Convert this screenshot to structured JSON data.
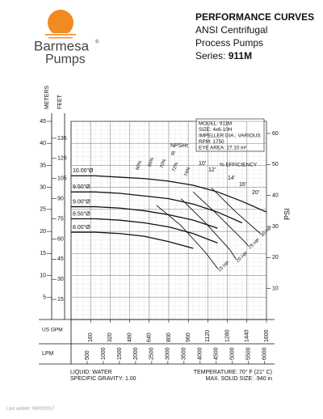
{
  "header": {
    "brand": "Barmesa",
    "brand_sub": "Pumps",
    "title": "PERFORMANCE CURVES",
    "line1": "ANSI Centrifugal",
    "line2": "Process Pumps",
    "series_label": "Series:",
    "series": "911M"
  },
  "chart_data": {
    "type": "line",
    "x_label": "US GPM",
    "x2_label": "LPM",
    "y_label": "FEET",
    "y2_label": "METERS",
    "y3_label": "PSI",
    "x": [
      0,
      200,
      400,
      600,
      800,
      1000,
      1200,
      1400,
      1600
    ],
    "xlim": [
      0,
      1600
    ],
    "xticks": [
      160,
      320,
      480,
      640,
      800,
      960,
      1120,
      1280,
      1440,
      1600
    ],
    "x2lim": [
      0,
      6057
    ],
    "x2ticks": [
      500,
      1000,
      1500,
      2000,
      2500,
      3000,
      3500,
      4000,
      4500,
      5000,
      5500,
      6000
    ],
    "ylim": [
      0,
      147.6
    ],
    "yticks": [
      15,
      30,
      45,
      60,
      75,
      90,
      105,
      120,
      135
    ],
    "y2lim": [
      0,
      45
    ],
    "y2ticks": [
      5,
      10,
      15,
      20,
      25,
      30,
      35,
      40,
      45
    ],
    "y3lim": [
      0,
      63.9
    ],
    "y3ticks": [
      10,
      20,
      30,
      40,
      50,
      60
    ],
    "grid": true,
    "series": [
      {
        "name": "10.00\"Ø",
        "color": "#111111",
        "values": [
          107,
          107,
          106,
          105,
          103,
          100,
          95,
          88,
          80
        ]
      },
      {
        "name": "9.50\"Ø",
        "color": "#111111",
        "values": [
          95,
          95,
          94,
          92,
          90,
          86,
          80,
          72,
          null
        ]
      },
      {
        "name": "9.00\"Ø",
        "color": "#111111",
        "values": [
          84,
          84,
          83,
          81,
          78,
          74,
          68,
          null,
          null
        ]
      },
      {
        "name": "8.50\"Ø",
        "color": "#111111",
        "values": [
          75,
          75,
          74,
          72,
          69,
          64,
          57,
          null,
          null
        ]
      },
      {
        "name": "8.00\"Ø",
        "color": "#111111",
        "values": [
          65,
          65,
          64,
          62,
          58,
          53,
          null,
          null,
          null
        ]
      }
    ],
    "hp_curves": [
      {
        "name": "15 HP",
        "x": [
          700,
          900,
          1100,
          1200
        ],
        "values": [
          85,
          70,
          50,
          38
        ]
      },
      {
        "name": "20 HP",
        "x": [
          900,
          1100,
          1300,
          1350
        ],
        "values": [
          90,
          72,
          52,
          45
        ]
      },
      {
        "name": "25 HP",
        "x": [
          1000,
          1200,
          1400,
          1450
        ],
        "values": [
          95,
          78,
          60,
          55
        ]
      },
      {
        "name": "30 HP",
        "x": [
          1150,
          1350,
          1500,
          1550
        ],
        "values": [
          98,
          80,
          68,
          64
        ]
      }
    ],
    "npsh_title": "NPSHr",
    "npsh_labels": [
      "8'",
      "10'",
      "12'",
      "14'",
      "16'",
      "20'"
    ],
    "efficiency_title": "% EFFICIENCY",
    "efficiency_labels": [
      "60%",
      "65%",
      "70%",
      "72%",
      "74%"
    ],
    "info": [
      "MODEL: 911M",
      "SIZE: 4x6-10H",
      "IMPELLER DIA.: VARIOUS",
      "RPM: 1750",
      "EYE AREA: 27.10 in²"
    ]
  },
  "conditions": {
    "liquid": "LIQUID: WATER",
    "gravity": "SPECIFIC GRAVITY: 1.00",
    "temperature": "TEMPERATURE: 70° F (21° C)",
    "solid": "MAX. SOLID SIZE: .940 in"
  },
  "footer": "Last update: 06/02/2017"
}
